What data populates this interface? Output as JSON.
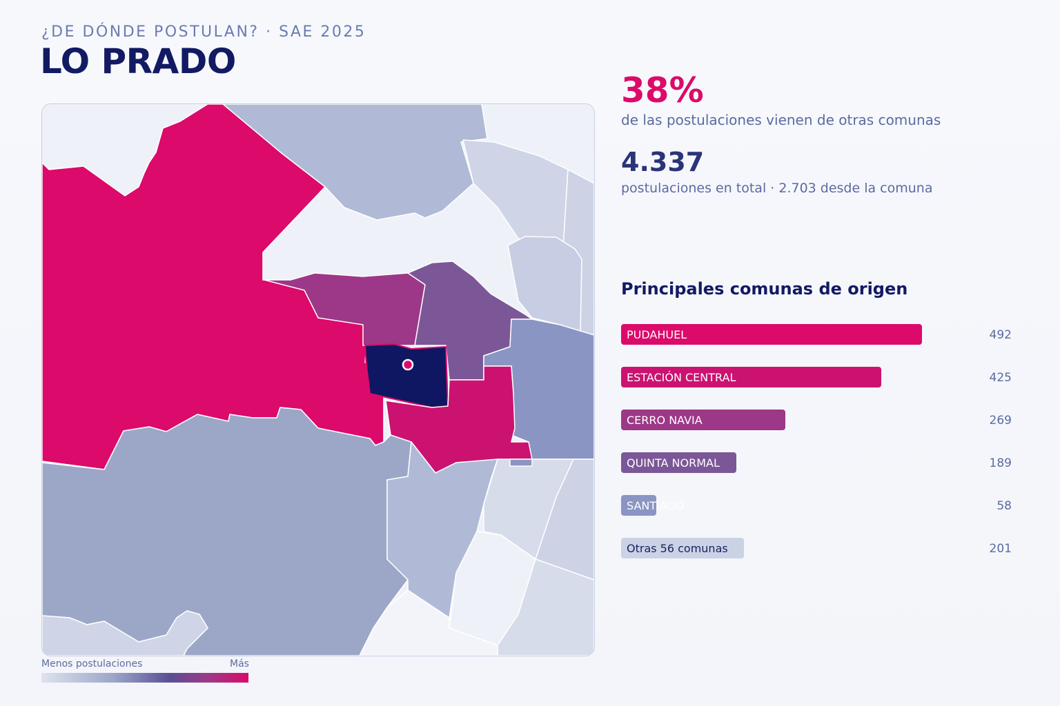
{
  "header": {
    "kicker": "¿DE DÓNDE POSTULAN? · SAE 2025",
    "title": "LO PRADO"
  },
  "stats": {
    "pct_value": "38%",
    "pct_caption": "de las postulaciones vienen de otras comunas",
    "total_value": "4.337",
    "total_caption": "postulaciones en total · 2.703 desde la comuna"
  },
  "legend": {
    "low_label": "Menos postulaciones",
    "high_label": "Más"
  },
  "origins": {
    "title": "Principales comunas de origen",
    "items": [
      {
        "label": "PUDAHUEL",
        "value": "492",
        "amount": 492,
        "color": "#dc0a6a",
        "label_color": "#ffffff"
      },
      {
        "label": "ESTACIÓN CENTRAL",
        "value": "425",
        "amount": 425,
        "color": "#cc1271",
        "label_color": "#ffffff"
      },
      {
        "label": "CERRO NAVIA",
        "value": "269",
        "amount": 269,
        "color": "#9c3887",
        "label_color": "#ffffff"
      },
      {
        "label": "QUINTA NORMAL",
        "value": "189",
        "amount": 189,
        "color": "#7c5797",
        "label_color": "#ffffff"
      },
      {
        "label": "SANTIAGO",
        "value": "58",
        "amount": 58,
        "color": "#8a95c3",
        "label_color": "#ffffff"
      },
      {
        "label": "Otras 56 comunas",
        "value": "201",
        "amount": 201,
        "color": "#ccd2e6",
        "label_color": "#16215f"
      }
    ]
  },
  "map_colors": {
    "selected": "#0f1762",
    "marker": "#dc0a6a",
    "very_low": "#e9ecf5"
  }
}
